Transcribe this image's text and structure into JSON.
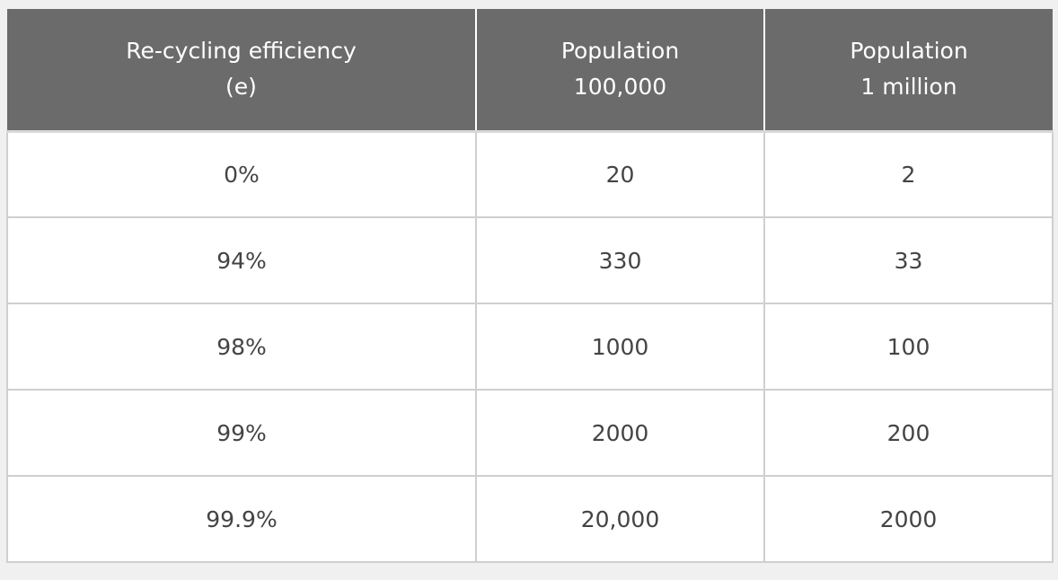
{
  "table": {
    "headers": [
      {
        "lines": [
          "Re-cycling efficiency",
          "(e)"
        ]
      },
      {
        "lines": [
          "Population",
          "100,000"
        ]
      },
      {
        "lines": [
          "Population",
          "1 million"
        ]
      }
    ],
    "rows": [
      [
        "0%",
        "20",
        "2"
      ],
      [
        "94%",
        "330",
        "33"
      ],
      [
        "98%",
        "1000",
        "100"
      ],
      [
        "99%",
        "2000",
        "200"
      ],
      [
        "99.9%",
        "20,000",
        "2000"
      ]
    ]
  }
}
